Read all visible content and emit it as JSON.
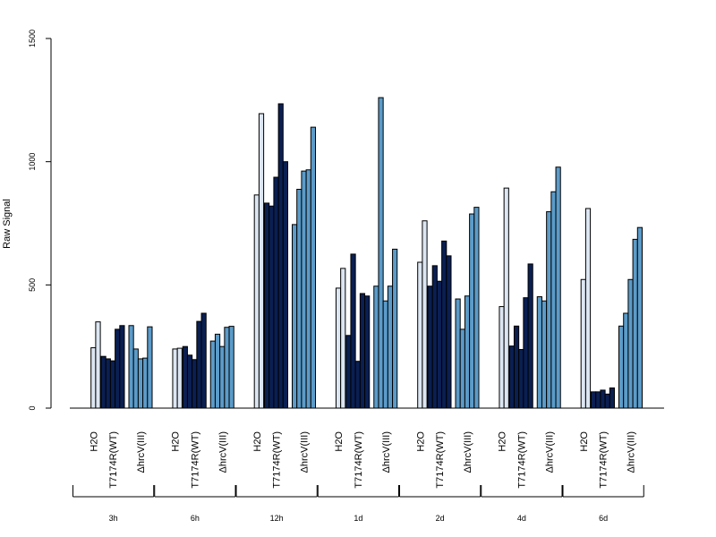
{
  "chart_data": {
    "type": "bar",
    "ylabel": "Raw Signal",
    "ylim": [
      0,
      1500
    ],
    "yticks": [
      "0",
      "500",
      "1000",
      "1500"
    ],
    "grid": false,
    "group_labels": [
      "H2O",
      "T7174R(WT)",
      "ΔhrcV(III)"
    ],
    "group_colors": [
      "#dce6f2",
      "#0a1f52",
      "#5b9bc9"
    ],
    "timepoints": [
      "3h",
      "6h",
      "12h",
      "1d",
      "2d",
      "4d",
      "6d"
    ],
    "data": [
      {
        "time": "3h",
        "groups": [
          [
            0,
            245,
            350
          ],
          [
            210,
            200,
            192,
            320,
            335
          ],
          [
            335,
            240,
            200,
            203,
            330
          ]
        ]
      },
      {
        "time": "6h",
        "groups": [
          [
            0,
            240,
            243
          ],
          [
            250,
            215,
            197,
            352,
            385
          ],
          [
            272,
            300,
            250,
            328,
            332
          ]
        ]
      },
      {
        "time": "12h",
        "groups": [
          [
            0,
            865,
            1195
          ],
          [
            832,
            820,
            937,
            1235,
            1000
          ],
          [
            745,
            888,
            962,
            967,
            1140
          ]
        ]
      },
      {
        "time": "1d",
        "groups": [
          [
            0,
            487,
            567
          ],
          [
            295,
            625,
            190,
            465,
            455
          ],
          [
            495,
            1260,
            435,
            495,
            645
          ]
        ]
      },
      {
        "time": "2d",
        "groups": [
          [
            0,
            592,
            760
          ],
          [
            495,
            578,
            515,
            678,
            618
          ],
          [
            443,
            320,
            455,
            788,
            815
          ]
        ]
      },
      {
        "time": "4d",
        "groups": [
          [
            0,
            412,
            893
          ],
          [
            252,
            333,
            238,
            448,
            585
          ],
          [
            452,
            435,
            797,
            878,
            978
          ]
        ]
      },
      {
        "time": "6d",
        "groups": [
          [
            0,
            522,
            810
          ],
          [
            66,
            66,
            73,
            57,
            82
          ],
          [
            333,
            385,
            522,
            685,
            733
          ]
        ]
      }
    ]
  }
}
